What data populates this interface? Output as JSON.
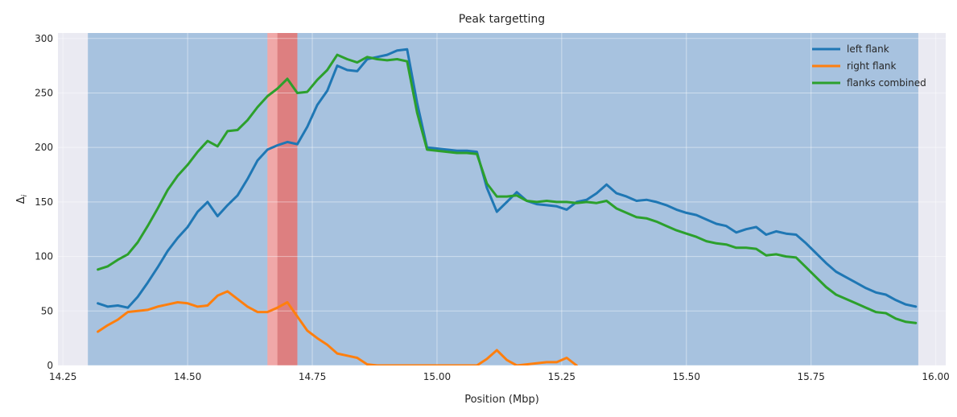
{
  "chart_data": {
    "type": "line",
    "title": "Peak targetting",
    "xlabel": "Position (Mbp)",
    "ylabel": "Δ",
    "ylabel_sub": "i",
    "xlim": [
      14.24,
      16.02
    ],
    "ylim": [
      0,
      305
    ],
    "xticks": [
      14.25,
      14.5,
      14.75,
      15.0,
      15.25,
      15.5,
      15.75,
      16.0
    ],
    "xtick_labels": [
      "14.25",
      "14.50",
      "14.75",
      "15.00",
      "15.25",
      "15.50",
      "15.75",
      "16.00"
    ],
    "yticks": [
      0,
      50,
      100,
      150,
      200,
      250,
      300
    ],
    "ytick_labels": [
      "0",
      "50",
      "100",
      "150",
      "200",
      "250",
      "300"
    ],
    "grid": true,
    "legend_position": "top-right",
    "colors": {
      "plot_background": "#eaeaf2",
      "grid": "#ffffff",
      "region": "#a7c2df",
      "peak_outer": "#f0a8a8",
      "peak_inner": "#dd7f80"
    },
    "shaded_regions": [
      {
        "x0": 14.3,
        "x1": 15.965,
        "kind": "region"
      },
      {
        "x0": 14.66,
        "x1": 14.72,
        "kind": "peak_outer"
      },
      {
        "x0": 14.68,
        "x1": 14.72,
        "kind": "peak_inner"
      }
    ],
    "series": [
      {
        "name": "left flank",
        "color": "#1f77b4",
        "x": [
          14.32,
          14.34,
          14.36,
          14.38,
          14.4,
          14.42,
          14.44,
          14.46,
          14.48,
          14.5,
          14.52,
          14.54,
          14.56,
          14.58,
          14.6,
          14.62,
          14.64,
          14.66,
          14.68,
          14.7,
          14.72,
          14.74,
          14.76,
          14.78,
          14.8,
          14.82,
          14.84,
          14.86,
          14.88,
          14.9,
          14.92,
          14.94,
          14.96,
          14.98,
          15.0,
          15.02,
          15.04,
          15.06,
          15.08,
          15.1,
          15.12,
          15.14,
          15.16,
          15.18,
          15.2,
          15.22,
          15.24,
          15.26,
          15.28,
          15.3,
          15.32,
          15.34,
          15.36,
          15.38,
          15.4,
          15.42,
          15.44,
          15.46,
          15.48,
          15.5,
          15.52,
          15.54,
          15.56,
          15.58,
          15.6,
          15.62,
          15.64,
          15.66,
          15.68,
          15.7,
          15.72,
          15.74,
          15.76,
          15.78,
          15.8,
          15.82,
          15.84,
          15.86,
          15.88,
          15.9,
          15.92,
          15.94,
          15.96
        ],
        "y": [
          57,
          54,
          55,
          53,
          63,
          76,
          90,
          105,
          117,
          127,
          141,
          150,
          137,
          147,
          156,
          171,
          188,
          198,
          202,
          205,
          203,
          219,
          239,
          252,
          275,
          271,
          270,
          281,
          283,
          285,
          289,
          290,
          241,
          200,
          199,
          198,
          197,
          197,
          196,
          163,
          141,
          150,
          159,
          151,
          148,
          147,
          146,
          143,
          150,
          152,
          158,
          166,
          158,
          155,
          151,
          152,
          150,
          147,
          143,
          140,
          138,
          134,
          130,
          128,
          122,
          125,
          127,
          120,
          123,
          121,
          120,
          112,
          103,
          94,
          86,
          81,
          76,
          71,
          67,
          65,
          60,
          56,
          54
        ]
      },
      {
        "name": "right flank",
        "color": "#ff7f0e",
        "x": [
          14.32,
          14.34,
          14.36,
          14.38,
          14.4,
          14.42,
          14.44,
          14.46,
          14.48,
          14.5,
          14.52,
          14.54,
          14.56,
          14.58,
          14.6,
          14.62,
          14.64,
          14.66,
          14.68,
          14.7,
          14.72,
          14.74,
          14.76,
          14.78,
          14.8,
          14.82,
          14.84,
          14.86,
          14.88,
          15.08,
          15.1,
          15.12,
          15.14,
          15.16,
          15.18,
          15.2,
          15.22,
          15.24,
          15.26,
          15.28
        ],
        "y": [
          31,
          37,
          42,
          49,
          50,
          51,
          54,
          56,
          58,
          57,
          54,
          55,
          64,
          68,
          61,
          54,
          49,
          49,
          53,
          58,
          45,
          32,
          25,
          19,
          11,
          9,
          7,
          1,
          0,
          0,
          6,
          14,
          5,
          0,
          1,
          2,
          3,
          3,
          7,
          0
        ]
      },
      {
        "name": "flanks combined",
        "color": "#2ca02c",
        "x": [
          14.32,
          14.34,
          14.36,
          14.38,
          14.4,
          14.42,
          14.44,
          14.46,
          14.48,
          14.5,
          14.52,
          14.54,
          14.56,
          14.58,
          14.6,
          14.62,
          14.64,
          14.66,
          14.68,
          14.7,
          14.72,
          14.74,
          14.76,
          14.78,
          14.8,
          14.82,
          14.84,
          14.86,
          14.88,
          14.9,
          14.92,
          14.94,
          14.96,
          14.98,
          15.0,
          15.02,
          15.04,
          15.06,
          15.08,
          15.1,
          15.12,
          15.14,
          15.16,
          15.18,
          15.2,
          15.22,
          15.24,
          15.26,
          15.28,
          15.3,
          15.32,
          15.34,
          15.36,
          15.38,
          15.4,
          15.42,
          15.44,
          15.46,
          15.48,
          15.5,
          15.52,
          15.54,
          15.56,
          15.58,
          15.6,
          15.62,
          15.64,
          15.66,
          15.68,
          15.7,
          15.72,
          15.74,
          15.76,
          15.78,
          15.8,
          15.82,
          15.84,
          15.86,
          15.88,
          15.9,
          15.92,
          15.94,
          15.96
        ],
        "y": [
          88,
          91,
          97,
          102,
          113,
          128,
          144,
          161,
          174,
          184,
          196,
          206,
          201,
          215,
          216,
          225,
          237,
          247,
          254,
          263,
          250,
          251,
          262,
          271,
          285,
          281,
          278,
          283,
          281,
          280,
          281,
          279,
          232,
          198,
          197,
          196,
          195,
          195,
          194,
          167,
          155,
          155,
          156,
          151,
          150,
          151,
          150,
          150,
          149,
          150,
          149,
          151,
          144,
          140,
          136,
          135,
          132,
          128,
          124,
          121,
          118,
          114,
          112,
          111,
          108,
          108,
          107,
          101,
          102,
          100,
          99,
          90,
          81,
          72,
          65,
          61,
          57,
          53,
          49,
          48,
          43,
          40,
          39
        ]
      }
    ]
  }
}
